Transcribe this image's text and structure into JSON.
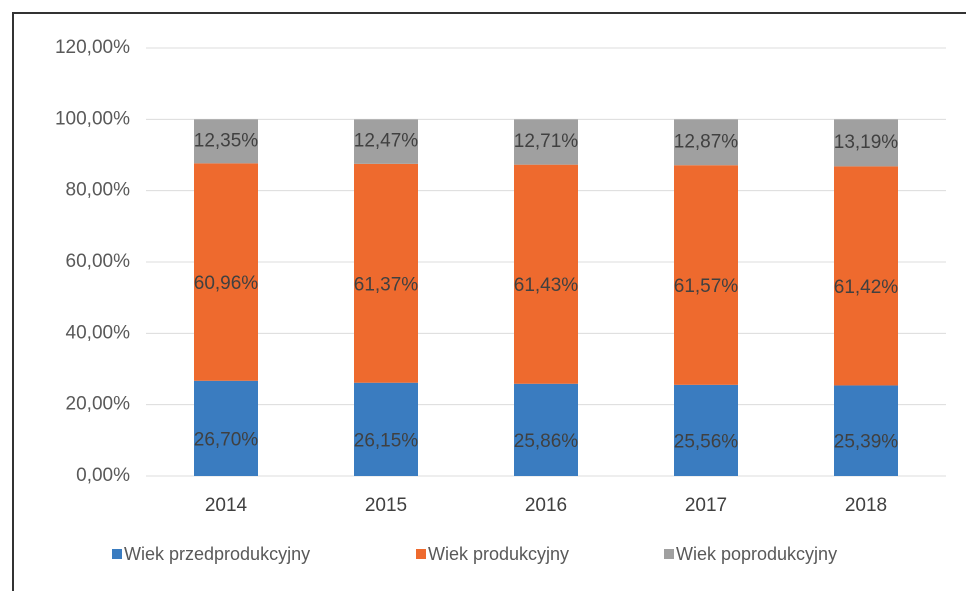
{
  "chart_data": {
    "type": "stacked_bar",
    "categories": [
      "2014",
      "2015",
      "2016",
      "2017",
      "2018"
    ],
    "series": [
      {
        "name": "Wiek przedprodukcyjny",
        "color": "#3a7cc0",
        "values": [
          26.7,
          26.15,
          25.86,
          25.56,
          25.39
        ],
        "value_labels": [
          "26,70%",
          "26,15%",
          "25,86%",
          "25,56%",
          "25,39%"
        ]
      },
      {
        "name": "Wiek produkcyjny",
        "color": "#ee6a2e",
        "values": [
          60.96,
          61.37,
          61.43,
          61.57,
          61.42
        ],
        "value_labels": [
          "60,96%",
          "61,37%",
          "61,43%",
          "61,57%",
          "61,42%"
        ]
      },
      {
        "name": "Wiek poprodukcyjny",
        "color": "#a0a0a0",
        "values": [
          12.35,
          12.47,
          12.71,
          12.87,
          13.19
        ],
        "value_labels": [
          "12,35%",
          "12,47%",
          "12,71%",
          "12,87%",
          "13,19%"
        ]
      }
    ],
    "ylim": [
      0,
      120
    ],
    "yticks": [
      {
        "value": 0,
        "label": "0,00%"
      },
      {
        "value": 20,
        "label": "20,00%"
      },
      {
        "value": 40,
        "label": "40,00%"
      },
      {
        "value": 60,
        "label": "60,00%"
      },
      {
        "value": 80,
        "label": "80,00%"
      },
      {
        "value": 100,
        "label": "100,00%"
      },
      {
        "value": 120,
        "label": "120,00%"
      }
    ],
    "grid": true,
    "legend": "bottom"
  }
}
